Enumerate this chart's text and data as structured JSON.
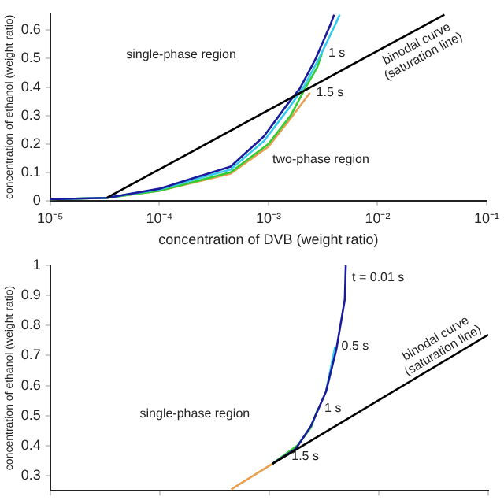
{
  "chart_data": [
    {
      "type": "line",
      "xlabel": "concentration of DVB (weight ratio)",
      "ylabel": "concentration of ethanol (weight ratio)",
      "log": "x",
      "grid": false,
      "legend": false,
      "marker": "none",
      "line_style": "solid",
      "xlim": [
        1e-05,
        0.1
      ],
      "xticks": [
        {
          "value": 1e-05,
          "label": "10⁻⁵"
        },
        {
          "value": 0.0001,
          "label": "10⁻⁴"
        },
        {
          "value": 0.001,
          "label": "10⁻³"
        },
        {
          "value": 0.01,
          "label": "10⁻²"
        },
        {
          "value": 0.1,
          "label": "10⁻¹"
        }
      ],
      "ylim": [
        0,
        0.66
      ],
      "yticks": [
        0,
        0.1,
        0.2,
        0.3,
        0.4,
        0.5,
        0.6
      ],
      "series": [
        {
          "name": "binodal curve (saturation line)",
          "color": "#000000",
          "x": [
            3.3e-05,
            0.041
          ],
          "values": [
            0.01,
            0.655
          ]
        },
        {
          "color": "#1a1a9c",
          "x": [
            1e-05,
            3.3e-05,
            0.0001,
            0.00045,
            0.00091,
            0.00147,
            0.00194,
            0.00268,
            0.0037,
            0.004
          ],
          "values": [
            0.005,
            0.01,
            0.042,
            0.12,
            0.227,
            0.336,
            0.395,
            0.496,
            0.62,
            0.655
          ]
        },
        {
          "color": "#33ccee",
          "x": [
            1e-05,
            3.3e-05,
            0.0001,
            0.00045,
            0.00091,
            0.0015,
            0.0021,
            0.0029,
            0.0041,
            0.0045
          ],
          "values": [
            0.005,
            0.01,
            0.04,
            0.11,
            0.21,
            0.32,
            0.4,
            0.5,
            0.62,
            0.655
          ]
        },
        {
          "name": "1 s",
          "color": "#33cc33",
          "x": [
            1e-05,
            3.3e-05,
            0.0001,
            0.00045,
            0.001,
            0.0016,
            0.0022,
            0.0028,
            0.0031
          ],
          "values": [
            0.005,
            0.01,
            0.035,
            0.1,
            0.2,
            0.3,
            0.4,
            0.47,
            0.52
          ]
        },
        {
          "name": "1.5 s",
          "color": "#e8a050",
          "x": [
            1e-05,
            3.3e-05,
            0.0001,
            0.00045,
            0.001,
            0.0016,
            0.0021,
            0.0024
          ],
          "values": [
            0.005,
            0.01,
            0.035,
            0.095,
            0.19,
            0.29,
            0.35,
            0.38
          ]
        }
      ],
      "annotations": [
        "single-phase region",
        "two-phase region"
      ]
    },
    {
      "type": "line",
      "ylabel": "concentration of ethanol (weight ratio)",
      "log": "x",
      "grid": false,
      "legend": false,
      "marker": "none",
      "line_style": "solid",
      "tick_labels": "y",
      "xlim": [
        1e-05,
        0.1
      ],
      "xticks": [
        {
          "value": 1e-05,
          "label": null
        },
        {
          "value": 0.0001,
          "label": null
        },
        {
          "value": 0.001,
          "label": null
        },
        {
          "value": 0.01,
          "label": null
        },
        {
          "value": 0.1,
          "label": null
        }
      ],
      "ylim": [
        0.25,
        1
      ],
      "yticks": [
        0.3,
        0.4,
        0.5,
        0.6,
        0.7,
        0.8,
        0.9,
        1
      ],
      "series": [
        {
          "name": "binodal curve (saturation line)",
          "color": "#000000",
          "x": [
            0.00107,
            0.1
          ],
          "values": [
            0.34,
            0.769
          ]
        },
        {
          "name": "t = 0.01 s",
          "color": "#1a1a9c",
          "x": [
            0.00107,
            0.00175,
            0.0024,
            0.0033,
            0.0041,
            0.0049,
            0.005
          ],
          "values": [
            0.34,
            0.39,
            0.465,
            0.58,
            0.72,
            0.887,
            1
          ]
        },
        {
          "name": "0.5 s",
          "color": "#33ccee",
          "x": [
            0.0033,
            0.004
          ],
          "values": [
            0.58,
            0.73
          ]
        },
        {
          "name": "1 s",
          "color": "#33cc33",
          "x": [
            0.00107,
            0.0018,
            0.0024,
            0.0028
          ],
          "values": [
            0.34,
            0.4,
            0.46,
            0.525
          ]
        },
        {
          "name": "1.5 s",
          "color": "#e8a050",
          "x": [
            0.00045,
            0.00107,
            0.0014
          ],
          "values": [
            0.255,
            0.34,
            0.365
          ]
        }
      ],
      "annotations": [
        "single-phase region"
      ]
    }
  ]
}
